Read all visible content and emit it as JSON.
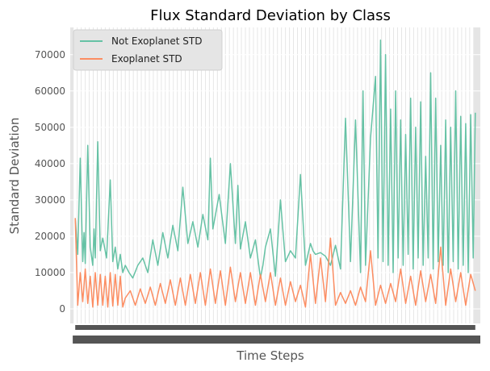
{
  "chart_data": {
    "type": "line",
    "title": "Flux Standard Deviation by Class",
    "xlabel": "Time Steps",
    "ylabel": "Standard Deviation",
    "xlim": [
      -40,
      3237
    ],
    "ylim": [
      -4000,
      77500
    ],
    "yticks": [
      0,
      10000,
      20000,
      30000,
      40000,
      50000,
      60000,
      70000
    ],
    "grid": true,
    "legend_position": "upper left",
    "x_tick_labels_overlapping": true,
    "series": [
      {
        "name": "Not Exoplanet STD",
        "color": "#66c2a5",
        "x": [
          0,
          20,
          40,
          60,
          70,
          80,
          100,
          120,
          140,
          150,
          160,
          180,
          200,
          220,
          250,
          280,
          300,
          320,
          340,
          360,
          380,
          400,
          430,
          460,
          500,
          540,
          580,
          620,
          660,
          700,
          740,
          780,
          820,
          860,
          900,
          940,
          980,
          1020,
          1060,
          1080,
          1100,
          1150,
          1200,
          1240,
          1280,
          1300,
          1320,
          1360,
          1400,
          1440,
          1480,
          1500,
          1520,
          1560,
          1600,
          1640,
          1680,
          1720,
          1760,
          1800,
          1840,
          1880,
          1900,
          1920,
          1960,
          2000,
          2040,
          2080,
          2120,
          2160,
          2200,
          2240,
          2280,
          2300,
          2320,
          2360,
          2400,
          2420,
          2440,
          2460,
          2480,
          2500,
          2520,
          2540,
          2560,
          2580,
          2600,
          2620,
          2640,
          2660,
          2680,
          2700,
          2720,
          2740,
          2760,
          2780,
          2800,
          2820,
          2840,
          2860,
          2880,
          2900,
          2920,
          2940,
          2960,
          2980,
          3000,
          3020,
          3040,
          3060,
          3080,
          3100,
          3120,
          3140,
          3160,
          3180,
          3197
        ],
        "values": [
          25000,
          15000,
          41500,
          13000,
          21000,
          12500,
          45000,
          17000,
          12000,
          22000,
          14000,
          46000,
          16000,
          19500,
          14000,
          35500,
          13000,
          17000,
          11000,
          15000,
          10000,
          12000,
          10000,
          8500,
          12000,
          14000,
          10000,
          19000,
          12000,
          21000,
          14000,
          23000,
          16000,
          33500,
          18000,
          24000,
          17000,
          26000,
          19000,
          41500,
          22000,
          31500,
          18000,
          40000,
          18000,
          34000,
          16500,
          24000,
          14000,
          19000,
          8500,
          12000,
          17000,
          22000,
          9000,
          30000,
          13000,
          16000,
          14000,
          37000,
          12000,
          18000,
          16000,
          15000,
          15500,
          14500,
          12000,
          17500,
          11000,
          52500,
          13000,
          52000,
          10000,
          60000,
          12000,
          47000,
          64000,
          14000,
          74000,
          13000,
          70000,
          12000,
          55000,
          10000,
          60000,
          14000,
          52000,
          12000,
          48000,
          15000,
          58000,
          11000,
          50000,
          14000,
          57000,
          12000,
          42000,
          14000,
          65000,
          11000,
          58000,
          13000,
          45000,
          12000,
          52000,
          10000,
          50000,
          13000,
          60000,
          11000,
          53000,
          12000,
          51000,
          10000,
          53500,
          14000,
          54000
        ]
      },
      {
        "name": "Exoplanet STD",
        "color": "#fc8d62",
        "x": [
          0,
          20,
          40,
          60,
          80,
          100,
          120,
          140,
          160,
          180,
          200,
          220,
          240,
          260,
          280,
          300,
          320,
          340,
          360,
          380,
          400,
          440,
          480,
          520,
          560,
          600,
          640,
          680,
          720,
          760,
          800,
          840,
          880,
          920,
          960,
          1000,
          1040,
          1080,
          1120,
          1160,
          1200,
          1240,
          1280,
          1320,
          1360,
          1400,
          1440,
          1480,
          1520,
          1560,
          1600,
          1640,
          1680,
          1720,
          1760,
          1800,
          1840,
          1880,
          1920,
          1960,
          2000,
          2040,
          2080,
          2120,
          2160,
          2200,
          2240,
          2280,
          2320,
          2360,
          2400,
          2440,
          2480,
          2520,
          2560,
          2600,
          2640,
          2680,
          2720,
          2760,
          2800,
          2840,
          2880,
          2920,
          2960,
          3000,
          3040,
          3080,
          3120,
          3160,
          3197
        ],
        "values": [
          25000,
          1000,
          10000,
          2000,
          11000,
          1500,
          9000,
          500,
          10000,
          1000,
          9500,
          1000,
          9000,
          500,
          10000,
          800,
          9500,
          1000,
          9000,
          500,
          3000,
          5000,
          1000,
          5500,
          1500,
          6000,
          1000,
          7000,
          1500,
          8000,
          1000,
          8500,
          1000,
          9500,
          1500,
          10000,
          1000,
          11000,
          1500,
          10500,
          1000,
          11500,
          2000,
          10000,
          1500,
          10000,
          1000,
          9500,
          2000,
          10000,
          1000,
          8500,
          1000,
          7500,
          2000,
          6500,
          500,
          15000,
          1500,
          14000,
          2000,
          19500,
          1000,
          4500,
          1500,
          5000,
          1000,
          6000,
          2000,
          16000,
          1000,
          6500,
          1500,
          7000,
          2000,
          11000,
          1500,
          9000,
          1000,
          10500,
          2000,
          9500,
          1500,
          17000,
          1000,
          11000,
          2000,
          10000,
          1000,
          9500,
          5000
        ]
      }
    ]
  }
}
